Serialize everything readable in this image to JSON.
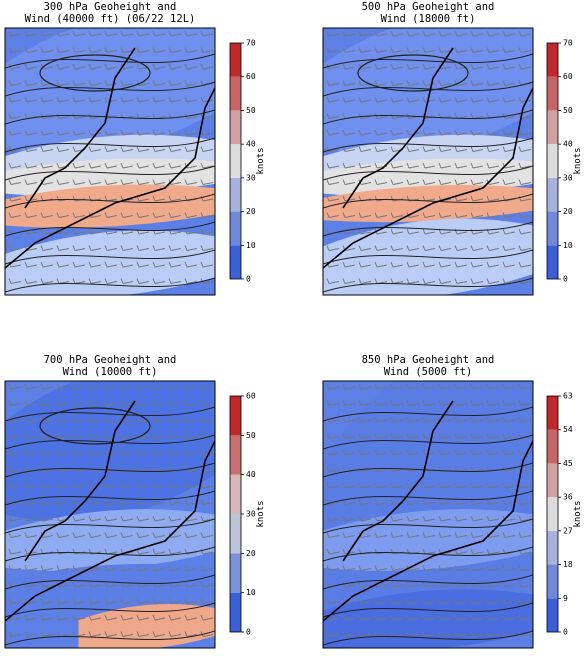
{
  "panels": [
    {
      "title": [
        "300 hPa Geoheight and",
        "Wind (40000 ft)  (06/22 12L)"
      ],
      "colorbar": {
        "label": "knots",
        "ticks": [
          0,
          10,
          20,
          30,
          40,
          50,
          60,
          70
        ]
      }
    },
    {
      "title": [
        "500 hPa Geoheight and",
        "Wind (18000 ft)"
      ],
      "colorbar": {
        "label": "knots",
        "ticks": [
          0,
          10,
          20,
          30,
          40,
          50,
          60,
          70
        ]
      }
    },
    {
      "title": [
        "700 hPa Geoheight and",
        "Wind (10000 ft)"
      ],
      "colorbar": {
        "label": "knots",
        "ticks": [
          0,
          10,
          20,
          30,
          40,
          50,
          60
        ]
      }
    },
    {
      "title": [
        "850 hPa Geoheight and",
        "Wind (5000 ft)"
      ],
      "colorbar": {
        "label": "knots",
        "ticks": [
          0,
          9,
          18,
          27,
          36,
          45,
          54,
          63
        ]
      }
    }
  ]
}
